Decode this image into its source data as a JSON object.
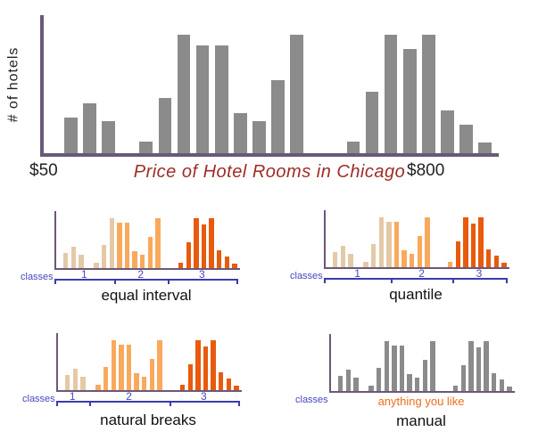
{
  "colors": {
    "bar_gray": "#8B8B8B",
    "axis_purple": "#6B5878",
    "class1_tan": "#E4C9A6",
    "class2_orange": "#F9A95C",
    "class3_dark_orange": "#E85A0D",
    "classes_blue": "#4646C3",
    "bracket_blue": "#3B3BB0",
    "title_dark_red": "#9E2B26",
    "annotation_orange": "#EF6C1A"
  },
  "chart_data": [
    {
      "type": "bar",
      "role": "main-histogram",
      "title": "Price of Hotel Rooms in Chicago",
      "ylabel": "# of hotels",
      "x_axis_start_label": "$50",
      "x_axis_end_label": "$800",
      "ylim": [
        0,
        100
      ],
      "grid": false,
      "values": [
        30,
        42,
        27,
        null,
        10,
        47,
        100,
        91,
        91,
        34,
        27,
        62,
        100,
        null,
        null,
        10,
        52,
        100,
        88,
        100,
        36,
        24,
        9
      ]
    },
    {
      "type": "bar",
      "role": "classification-panel",
      "title": "equal interval",
      "classes_label": "classes",
      "class_labels": [
        "1",
        "2",
        "3"
      ],
      "bar_classes": [
        1,
        1,
        1,
        1,
        1,
        1,
        2,
        2,
        2,
        2,
        2,
        2,
        3,
        3,
        3,
        3,
        3,
        3,
        3,
        3
      ],
      "has_bracket": true,
      "annotation": null
    },
    {
      "type": "bar",
      "role": "classification-panel",
      "title": "quantile",
      "classes_label": "classes",
      "class_labels": [
        "1",
        "2",
        "3"
      ],
      "bar_classes": [
        1,
        1,
        1,
        1,
        1,
        1,
        1,
        2,
        2,
        2,
        2,
        2,
        2,
        3,
        3,
        3,
        3,
        3,
        3,
        3
      ],
      "has_bracket": true,
      "annotation": null
    },
    {
      "type": "bar",
      "role": "classification-panel",
      "title": "natural breaks",
      "classes_label": "classes",
      "class_labels": [
        "1",
        "2",
        "3"
      ],
      "bar_classes": [
        1,
        1,
        1,
        2,
        2,
        2,
        2,
        2,
        2,
        2,
        2,
        2,
        3,
        3,
        3,
        3,
        3,
        3,
        3,
        3
      ],
      "has_bracket": true,
      "annotation": null
    },
    {
      "type": "bar",
      "role": "classification-panel",
      "title": "manual",
      "classes_label": "classes",
      "class_labels": [],
      "bar_classes": [
        0,
        0,
        0,
        0,
        0,
        0,
        0,
        0,
        0,
        0,
        0,
        0,
        0,
        0,
        0,
        0,
        0,
        0,
        0,
        0
      ],
      "has_bracket": false,
      "annotation": "anything you like"
    }
  ]
}
